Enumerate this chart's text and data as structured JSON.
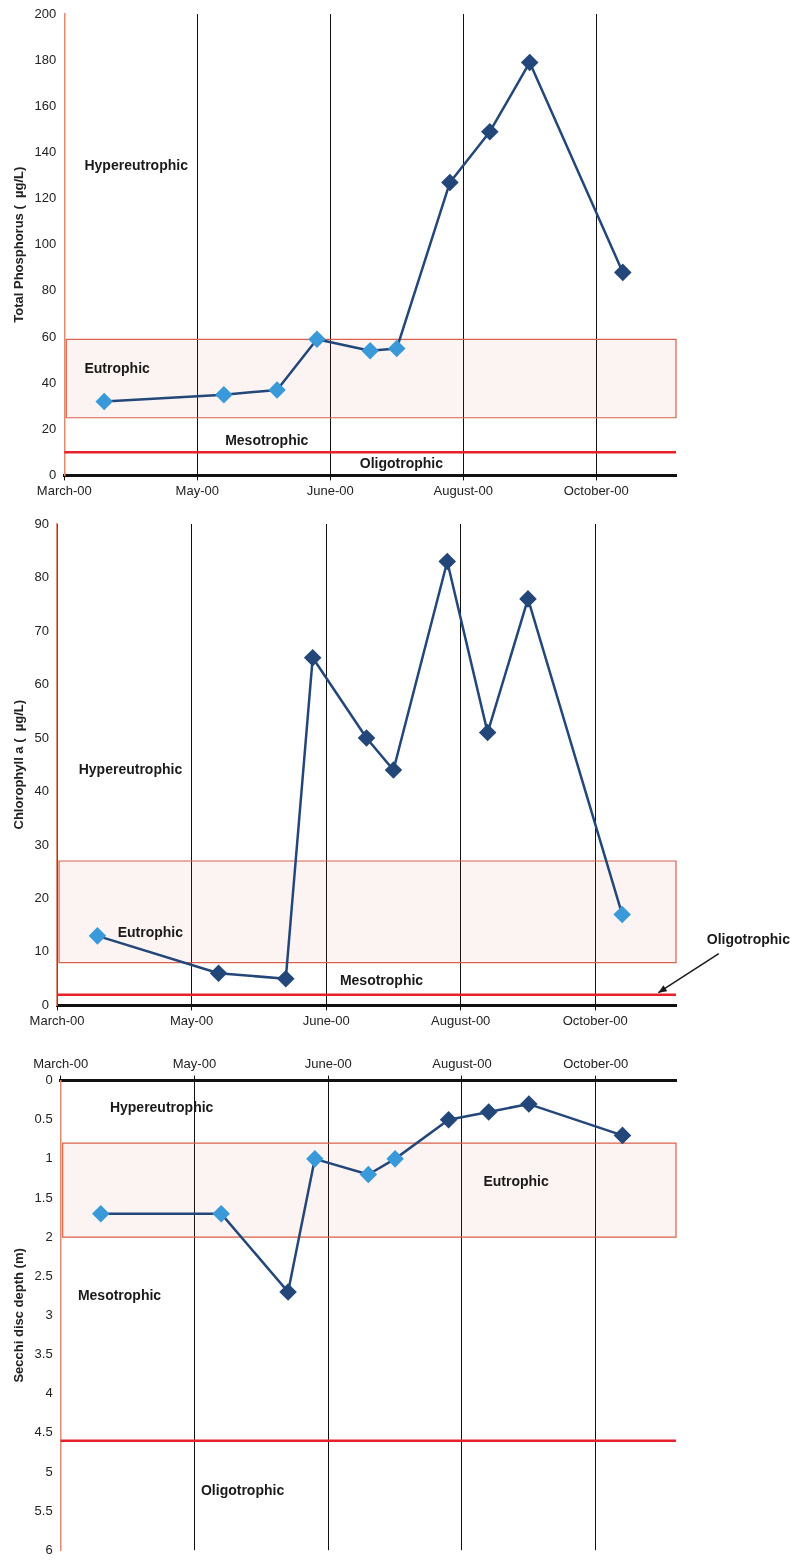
{
  "chart_data": [
    {
      "type": "line",
      "ylabel": "Total Phosphorus (  µg/L)",
      "categories": [
        "March-00",
        null,
        null,
        null,
        null,
        null,
        null,
        null,
        null,
        null,
        "May-00",
        null,
        null,
        null,
        null,
        null,
        null,
        null,
        null,
        null,
        "June-00",
        null,
        null,
        null,
        null,
        null,
        null,
        null,
        null,
        null,
        "August-00",
        null,
        null,
        null,
        null,
        null,
        null,
        null,
        null,
        null,
        "October-00",
        null,
        null,
        null,
        null,
        null,
        null
      ],
      "series": [
        {
          "color": "#24477a",
          "values": [
            null,
            null,
            null,
            32,
            null,
            null,
            null,
            null,
            null,
            null,
            null,
            null,
            35,
            null,
            null,
            null,
            37,
            null,
            null,
            59,
            null,
            null,
            null,
            54,
            null,
            55,
            null,
            null,
            null,
            127,
            null,
            null,
            149,
            null,
            null,
            179,
            null,
            null,
            null,
            null,
            null,
            null,
            88,
            null,
            null,
            null,
            null
          ],
          "colors": [
            null,
            null,
            null,
            "#3a9ad9",
            null,
            null,
            null,
            null,
            null,
            null,
            null,
            null,
            "#3a9ad9",
            null,
            null,
            null,
            "#3a9ad9",
            null,
            null,
            "#3a9ad9",
            null,
            null,
            null,
            "#3a9ad9",
            null,
            "#3a9ad9",
            null,
            null,
            null,
            "#24477a",
            null,
            null,
            "#24477a",
            null,
            null,
            "#24477a",
            null,
            null,
            null,
            null,
            null,
            null,
            "#24477a",
            null,
            null,
            null,
            null
          ]
        }
      ],
      "ylim": [
        0,
        200
      ],
      "yticks": [
        0,
        20,
        40,
        60,
        80,
        100,
        120,
        140,
        160,
        180,
        200
      ],
      "grid": "x",
      "marker": "diamond",
      "bands": [
        {
          "axis": "y",
          "from": 25,
          "to": 59,
          "color": "#d9604a"
        }
      ],
      "ref_lines": [
        {
          "axis": "y",
          "value": 10,
          "color": "#e8202a"
        }
      ],
      "annotations": [
        "Hypereutrophic",
        "Eutrophic",
        "Mesotrophic",
        "Oligotrophic"
      ]
    },
    {
      "type": "line",
      "ylabel": "Chlorophyll a (  µg/L)",
      "categories": [
        "March-00",
        null,
        null,
        null,
        null,
        null,
        null,
        null,
        null,
        null,
        "May-00",
        null,
        null,
        null,
        null,
        null,
        null,
        null,
        null,
        null,
        "June-00",
        null,
        null,
        null,
        null,
        null,
        null,
        null,
        null,
        null,
        "August-00",
        null,
        null,
        null,
        null,
        null,
        null,
        null,
        null,
        null,
        "October-00",
        null,
        null,
        null,
        null,
        null,
        null
      ],
      "series": [
        {
          "color": "#24477a",
          "values": [
            null,
            null,
            null,
            13,
            null,
            null,
            null,
            null,
            null,
            null,
            null,
            null,
            6,
            null,
            null,
            null,
            null,
            5,
            null,
            65,
            null,
            null,
            null,
            50,
            null,
            44,
            null,
            null,
            null,
            83,
            null,
            null,
            51,
            null,
            null,
            76,
            null,
            null,
            null,
            null,
            null,
            null,
            17,
            null,
            null,
            null,
            null
          ],
          "colors": [
            null,
            null,
            null,
            "#3a9ad9",
            null,
            null,
            null,
            null,
            null,
            null,
            null,
            null,
            "#24477a",
            null,
            null,
            null,
            null,
            "#24477a",
            null,
            "#24477a",
            null,
            null,
            null,
            "#24477a",
            null,
            "#24477a",
            null,
            null,
            null,
            "#24477a",
            null,
            null,
            "#24477a",
            null,
            null,
            "#24477a",
            null,
            null,
            null,
            null,
            null,
            null,
            "#3a9ad9",
            null,
            null,
            null,
            null
          ]
        }
      ],
      "ylim": [
        0,
        90
      ],
      "yticks": [
        0,
        10,
        20,
        30,
        40,
        50,
        60,
        70,
        80,
        90
      ],
      "grid": "x",
      "marker": "diamond",
      "bands": [
        {
          "axis": "y",
          "from": 8,
          "to": 27,
          "color": "#d9604a"
        }
      ],
      "ref_lines": [
        {
          "axis": "y",
          "value": 2,
          "color": "#e8202a",
          "label": "Oligotrophic"
        }
      ],
      "annotations": [
        "Hypereutrophic",
        "Eutrophic",
        "Mesotrophic"
      ]
    },
    {
      "type": "line",
      "ylabel": "Secchi disc depth (m)",
      "categories": [
        "March-00",
        null,
        null,
        null,
        null,
        null,
        null,
        null,
        null,
        null,
        "May-00",
        null,
        null,
        null,
        null,
        null,
        null,
        null,
        null,
        null,
        "June-00",
        null,
        null,
        null,
        null,
        null,
        null,
        null,
        null,
        null,
        "August-00",
        null,
        null,
        null,
        null,
        null,
        null,
        null,
        null,
        null,
        "October-00",
        null,
        null,
        null,
        null,
        null,
        null
      ],
      "series": [
        {
          "color": "#24477a",
          "values": [
            null,
            null,
            null,
            1.7,
            null,
            null,
            null,
            null,
            null,
            null,
            null,
            null,
            1.7,
            null,
            null,
            null,
            null,
            2.7,
            null,
            1.0,
            null,
            null,
            null,
            1.2,
            null,
            1.0,
            null,
            null,
            null,
            0.5,
            null,
            null,
            0.4,
            null,
            null,
            0.3,
            null,
            null,
            null,
            null,
            null,
            null,
            0.7,
            null,
            null,
            null,
            null
          ],
          "colors": [
            null,
            null,
            null,
            "#3a9ad9",
            null,
            null,
            null,
            null,
            null,
            null,
            null,
            null,
            "#3a9ad9",
            null,
            null,
            null,
            null,
            "#24477a",
            null,
            "#3a9ad9",
            null,
            null,
            null,
            "#3a9ad9",
            null,
            "#3a9ad9",
            null,
            null,
            null,
            "#24477a",
            null,
            null,
            "#24477a",
            null,
            null,
            "#24477a",
            null,
            null,
            null,
            null,
            null,
            null,
            "#24477a",
            null,
            null,
            null,
            null
          ]
        }
      ],
      "ylim": [
        6,
        0
      ],
      "yticks": [
        0,
        0.5,
        1,
        1.5,
        2,
        2.5,
        3,
        3.5,
        4,
        4.5,
        5,
        5.5,
        6
      ],
      "grid": "x",
      "marker": "diamond",
      "bands": [
        {
          "axis": "y",
          "from": 0.8,
          "to": 2.0,
          "color": "#d9604a"
        }
      ],
      "ref_lines": [
        {
          "axis": "y",
          "value": 4.6,
          "color": "#e8202a"
        }
      ],
      "annotations": [
        "Hypereutrophic",
        "Eutrophic",
        "Mesotrophic",
        "Oligotrophic"
      ]
    }
  ]
}
